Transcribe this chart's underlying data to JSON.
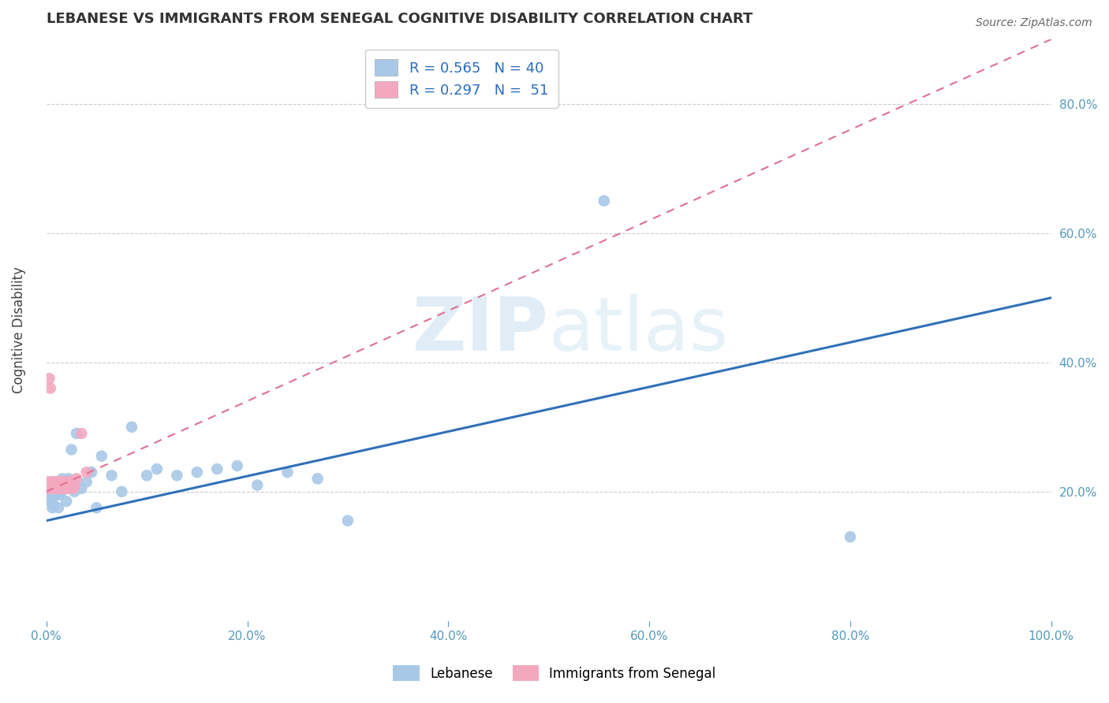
{
  "title": "LEBANESE VS IMMIGRANTS FROM SENEGAL COGNITIVE DISABILITY CORRELATION CHART",
  "source": "Source: ZipAtlas.com",
  "ylabel": "Cognitive Disability",
  "blue_label": "Lebanese",
  "pink_label": "Immigrants from Senegal",
  "blue_R": 0.565,
  "blue_N": 40,
  "pink_R": 0.297,
  "pink_N": 51,
  "blue_color": "#a8c8e8",
  "pink_color": "#f4a8c0",
  "blue_line_color": "#3070b8",
  "pink_line_color": "#e07090",
  "xlim": [
    0.0,
    1.0
  ],
  "ylim": [
    0.0,
    0.9
  ],
  "y_ticks": [
    0.2,
    0.4,
    0.6,
    0.8
  ],
  "x_ticks": [
    0.0,
    0.2,
    0.4,
    0.6,
    0.8,
    1.0
  ],
  "blue_line_x0": 0.0,
  "blue_line_y0": 0.155,
  "blue_line_x1": 1.0,
  "blue_line_y1": 0.5,
  "pink_line_x0": 0.0,
  "pink_line_y0": 0.2,
  "pink_line_x1": 1.0,
  "pink_line_y1": 0.9,
  "blue_pts_x": [
    0.002,
    0.003,
    0.004,
    0.005,
    0.006,
    0.007,
    0.008,
    0.009,
    0.01,
    0.011,
    0.012,
    0.013,
    0.015,
    0.016,
    0.018,
    0.02,
    0.022,
    0.025,
    0.028,
    0.03,
    0.035,
    0.04,
    0.045,
    0.05,
    0.055,
    0.065,
    0.075,
    0.085,
    0.1,
    0.11,
    0.13,
    0.15,
    0.17,
    0.19,
    0.21,
    0.24,
    0.27,
    0.3,
    0.555,
    0.8
  ],
  "blue_pts_y": [
    0.19,
    0.2,
    0.185,
    0.195,
    0.175,
    0.18,
    0.205,
    0.195,
    0.205,
    0.215,
    0.175,
    0.195,
    0.2,
    0.22,
    0.21,
    0.185,
    0.22,
    0.265,
    0.2,
    0.29,
    0.205,
    0.215,
    0.23,
    0.175,
    0.255,
    0.225,
    0.2,
    0.3,
    0.225,
    0.235,
    0.225,
    0.23,
    0.235,
    0.24,
    0.21,
    0.23,
    0.22,
    0.155,
    0.65,
    0.13
  ],
  "pink_pts_x": [
    0.001,
    0.001,
    0.002,
    0.002,
    0.003,
    0.003,
    0.004,
    0.004,
    0.005,
    0.005,
    0.006,
    0.006,
    0.007,
    0.007,
    0.008,
    0.008,
    0.009,
    0.009,
    0.01,
    0.01,
    0.011,
    0.011,
    0.012,
    0.012,
    0.013,
    0.013,
    0.014,
    0.014,
    0.015,
    0.015,
    0.016,
    0.016,
    0.017,
    0.017,
    0.018,
    0.018,
    0.019,
    0.019,
    0.02,
    0.02,
    0.021,
    0.022,
    0.023,
    0.024,
    0.025,
    0.026,
    0.027,
    0.028,
    0.03,
    0.035,
    0.04
  ],
  "pink_pts_y": [
    0.21,
    0.215,
    0.205,
    0.21,
    0.375,
    0.21,
    0.36,
    0.205,
    0.215,
    0.205,
    0.21,
    0.215,
    0.205,
    0.21,
    0.215,
    0.205,
    0.21,
    0.215,
    0.205,
    0.21,
    0.215,
    0.205,
    0.21,
    0.215,
    0.21,
    0.215,
    0.205,
    0.21,
    0.215,
    0.205,
    0.21,
    0.215,
    0.205,
    0.21,
    0.215,
    0.205,
    0.21,
    0.215,
    0.205,
    0.21,
    0.215,
    0.21,
    0.205,
    0.21,
    0.215,
    0.21,
    0.205,
    0.21,
    0.22,
    0.29,
    0.23
  ]
}
